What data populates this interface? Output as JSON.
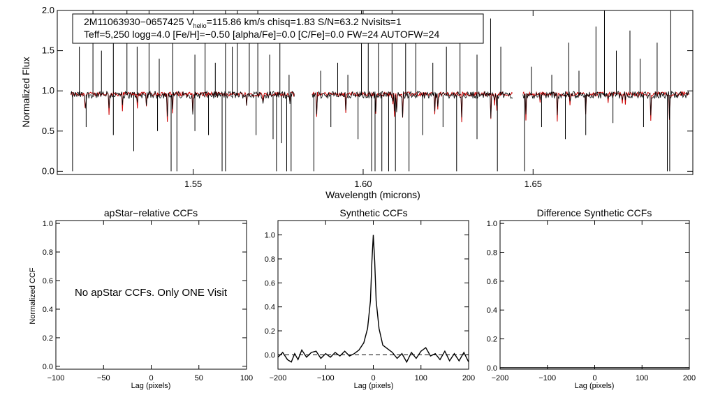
{
  "chart_data": [
    {
      "type": "line",
      "id": "spectrum",
      "xlabel": "Wavelength (microns)",
      "ylabel": "Normalized Flux",
      "xlim": [
        1.51,
        1.697
      ],
      "ylim": [
        -0.04,
        2.0
      ],
      "x_ticks": [
        1.55,
        1.6,
        1.65
      ],
      "x_tick_labels": [
        "1.55",
        "1.60",
        "1.65"
      ],
      "y_ticks": [
        0.0,
        0.5,
        1.0,
        1.5,
        2.0
      ],
      "y_tick_labels": [
        "0.0",
        "0.5",
        "1.0",
        "1.5",
        "2.0"
      ],
      "chips": [
        [
          1.514,
          1.58
        ],
        [
          1.585,
          1.644
        ],
        [
          1.647,
          1.696
        ]
      ],
      "series": [
        {
          "name": "observed",
          "color": "#000000",
          "baseline": 0.95
        },
        {
          "name": "model",
          "color": "#cc0000",
          "baseline": 0.96
        }
      ],
      "spikes_up": [
        [
          1.5165,
          1.55
        ],
        [
          1.5205,
          2.0
        ],
        [
          1.523,
          1.5
        ],
        [
          1.5265,
          1.75
        ],
        [
          1.5305,
          2.0
        ],
        [
          1.5335,
          1.55
        ],
        [
          1.537,
          2.0
        ],
        [
          1.54,
          1.4
        ],
        [
          1.544,
          1.7
        ],
        [
          1.5505,
          1.45
        ],
        [
          1.5535,
          1.6
        ],
        [
          1.5565,
          1.35
        ],
        [
          1.5595,
          2.0
        ],
        [
          1.5615,
          1.55
        ],
        [
          1.563,
          2.0
        ],
        [
          1.5665,
          1.7
        ],
        [
          1.569,
          2.0
        ],
        [
          1.5725,
          1.45
        ],
        [
          1.5755,
          1.7
        ],
        [
          1.5782,
          1.2
        ],
        [
          1.5875,
          1.25
        ],
        [
          1.5925,
          1.35
        ],
        [
          1.5955,
          1.2
        ],
        [
          1.5995,
          2.0
        ],
        [
          1.6015,
          1.6
        ],
        [
          1.6045,
          1.7
        ],
        [
          1.6085,
          2.0
        ],
        [
          1.6125,
          1.85
        ],
        [
          1.6155,
          1.6
        ],
        [
          1.6205,
          1.35
        ],
        [
          1.6245,
          1.55
        ],
        [
          1.6285,
          1.7
        ],
        [
          1.6335,
          1.45
        ],
        [
          1.6375,
          1.9
        ],
        [
          1.6405,
          1.55
        ],
        [
          1.6495,
          1.3
        ],
        [
          1.6555,
          1.2
        ],
        [
          1.6605,
          1.6
        ],
        [
          1.6635,
          1.25
        ],
        [
          1.6685,
          1.8
        ],
        [
          1.671,
          2.0
        ],
        [
          1.6745,
          1.5
        ],
        [
          1.6785,
          1.75
        ],
        [
          1.6815,
          1.4
        ],
        [
          1.6865,
          1.6
        ],
        [
          1.6905,
          2.0
        ]
      ],
      "spikes_down": [
        [
          1.5145,
          0.0
        ],
        [
          1.5185,
          0.55
        ],
        [
          1.5265,
          0.45
        ],
        [
          1.5325,
          0.25
        ],
        [
          1.5395,
          0.5
        ],
        [
          1.5435,
          0.0
        ],
        [
          1.5452,
          0.0
        ],
        [
          1.5505,
          0.5
        ],
        [
          1.5545,
          0.45
        ],
        [
          1.5585,
          0.0
        ],
        [
          1.5595,
          0.0
        ],
        [
          1.5685,
          0.45
        ],
        [
          1.5735,
          0.4
        ],
        [
          1.5745,
          0.0
        ],
        [
          1.576,
          0.35
        ],
        [
          1.5775,
          0.0
        ],
        [
          1.5788,
          0.0
        ],
        [
          1.5855,
          0.0
        ],
        [
          1.5905,
          0.55
        ],
        [
          1.5985,
          0.4
        ],
        [
          1.6025,
          0.0
        ],
        [
          1.6035,
          0.0
        ],
        [
          1.6055,
          0.0
        ],
        [
          1.6075,
          0.0
        ],
        [
          1.6095,
          0.0
        ],
        [
          1.6135,
          0.0
        ],
        [
          1.6175,
          0.45
        ],
        [
          1.6235,
          0.55
        ],
        [
          1.6275,
          0.0
        ],
        [
          1.6335,
          0.4
        ],
        [
          1.6395,
          0.0
        ],
        [
          1.6475,
          0.0
        ],
        [
          1.6525,
          0.55
        ],
        [
          1.6595,
          0.4
        ],
        [
          1.6655,
          0.45
        ],
        [
          1.6735,
          0.6
        ],
        [
          1.6825,
          0.55
        ],
        [
          1.6895,
          0.0
        ],
        [
          1.6902,
          0.0
        ]
      ],
      "info_line1": {
        "pre": "2M11063930−0657425  V",
        "sub": "helio",
        "post": "=115.86 km/s  chisq=1.83  S/N=63.2  Nvisits=1"
      },
      "info_line2": "Teff=5,250 logg=4.0 [Fe/H]=−0.50 [alpha/Fe]=0.0 [C/Fe]=0.0 FW=24 AUTOFW=24"
    },
    {
      "type": "line",
      "id": "apstar-ccf",
      "title": "apStar−relative CCFs",
      "xlabel": "Lag (pixels)",
      "ylabel": "Normalized CCF",
      "xlim": [
        -100,
        100
      ],
      "ylim": [
        -0.02,
        1.02
      ],
      "x_ticks": [
        -100,
        -50,
        0,
        50,
        100
      ],
      "x_tick_labels": [
        "−100",
        "−50",
        "0",
        "50",
        "100"
      ],
      "y_ticks": [
        0.0,
        0.2,
        0.4,
        0.6,
        0.8,
        1.0
      ],
      "y_tick_labels": [
        "0.0",
        "0.2",
        "0.4",
        "0.6",
        "0.8",
        "1.0"
      ],
      "annotation": "No apStar CCFs.  Only ONE Visit",
      "series": []
    },
    {
      "type": "line",
      "id": "synthetic-ccf",
      "title": "Synthetic CCFs",
      "xlabel": "Lag (pixels)",
      "ylabel": "",
      "xlim": [
        -200,
        200
      ],
      "ylim": [
        -0.12,
        1.12
      ],
      "x_ticks": [
        -200,
        -100,
        0,
        100,
        200
      ],
      "x_tick_labels": [
        "−200",
        "−100",
        "0",
        "100",
        "200"
      ],
      "y_ticks": [
        0.0,
        0.2,
        0.4,
        0.6,
        0.8,
        1.0
      ],
      "y_tick_labels": [
        "0.0",
        "0.2",
        "0.4",
        "0.6",
        "0.8",
        "1.0"
      ],
      "reference_line": 0.0,
      "series": [
        {
          "name": "ccf",
          "x": [
            -200,
            -190,
            -180,
            -172,
            -165,
            -158,
            -150,
            -140,
            -130,
            -120,
            -110,
            -100,
            -90,
            -80,
            -70,
            -60,
            -50,
            -40,
            -30,
            -20,
            -12,
            -6,
            -3,
            0,
            3,
            6,
            12,
            20,
            30,
            40,
            50,
            60,
            70,
            80,
            90,
            100,
            110,
            120,
            130,
            140,
            150,
            160,
            170,
            180,
            190,
            200
          ],
          "y": [
            -0.02,
            0.02,
            -0.04,
            -0.06,
            0.01,
            -0.04,
            0.04,
            -0.02,
            0.02,
            0.03,
            -0.03,
            0.01,
            -0.02,
            0.02,
            -0.01,
            0.03,
            -0.01,
            0.01,
            0.04,
            0.1,
            0.22,
            0.45,
            0.78,
            1.0,
            0.78,
            0.45,
            0.22,
            0.08,
            0.05,
            0.02,
            -0.03,
            0.01,
            -0.06,
            0.02,
            -0.03,
            0.03,
            0.06,
            -0.01,
            0.01,
            -0.04,
            0.03,
            -0.05,
            0.01,
            -0.05,
            0.02,
            -0.06
          ]
        }
      ]
    },
    {
      "type": "line",
      "id": "difference-ccf",
      "title": "Difference Synthetic CCFs",
      "xlabel": "Lag (pixels)",
      "ylabel": "",
      "xlim": [
        -200,
        200
      ],
      "ylim": [
        -0.01,
        1.02
      ],
      "x_ticks": [
        -200,
        -100,
        0,
        100,
        200
      ],
      "x_tick_labels": [
        "−200",
        "−100",
        "0",
        "100",
        "200"
      ],
      "y_ticks": [
        0.0,
        0.2,
        0.4,
        0.6,
        0.8,
        1.0
      ],
      "y_tick_labels": [
        "0.0",
        "0.2",
        "0.4",
        "0.6",
        "0.8",
        "1.0"
      ],
      "series": [
        {
          "name": "difference",
          "x": [
            -200,
            200
          ],
          "y": [
            0.0,
            0.0
          ]
        }
      ]
    }
  ]
}
